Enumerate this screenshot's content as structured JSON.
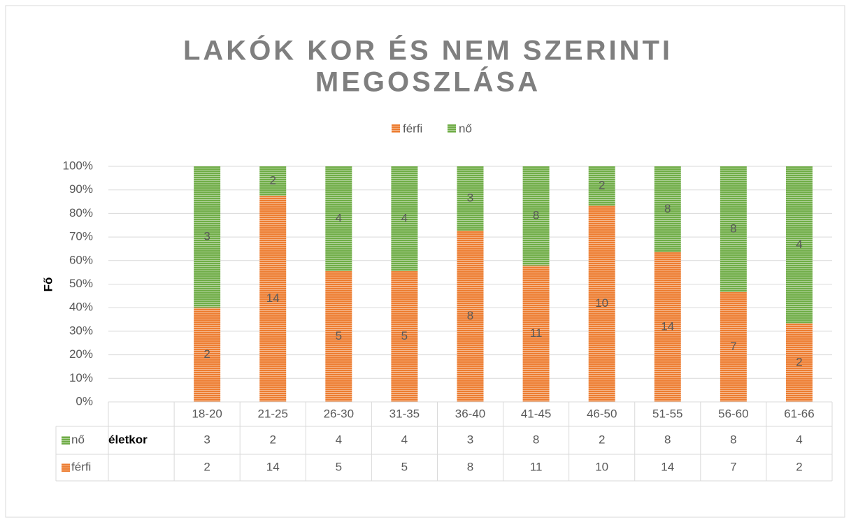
{
  "chart_data": {
    "type": "bar",
    "stacking": "percent",
    "title": [
      "LAKÓK KOR ÉS NEM SZERINTI",
      "MEGOSZLÁSA"
    ],
    "y_label": "Fő",
    "x_label": "életkor",
    "categories": [
      null,
      "18-20",
      "21-25",
      "26-30",
      "31-35",
      "36-40",
      "41-45",
      "46-50",
      "51-55",
      "56-60",
      "61-66"
    ],
    "series": [
      {
        "name": "férfi",
        "color": "#ed7d31",
        "values": [
          null,
          2,
          14,
          5,
          5,
          8,
          11,
          10,
          14,
          7,
          2
        ]
      },
      {
        "name": "nő",
        "color": "#70ad47",
        "values": [
          null,
          3,
          2,
          4,
          4,
          3,
          8,
          2,
          8,
          8,
          4
        ]
      }
    ],
    "ylim": [
      0,
      100
    ],
    "yticks": [
      {
        "value": 0,
        "label": "0%"
      },
      {
        "value": 10,
        "label": "10%"
      },
      {
        "value": 20,
        "label": "20%"
      },
      {
        "value": 30,
        "label": "30%"
      },
      {
        "value": 40,
        "label": "40%"
      },
      {
        "value": 50,
        "label": "50%"
      },
      {
        "value": 60,
        "label": "60%"
      },
      {
        "value": 70,
        "label": "70%"
      },
      {
        "value": 80,
        "label": "80%"
      },
      {
        "value": 90,
        "label": "90%"
      },
      {
        "value": 100,
        "label": "100%"
      }
    ],
    "grid": true,
    "legend": "top",
    "data_table": true
  }
}
